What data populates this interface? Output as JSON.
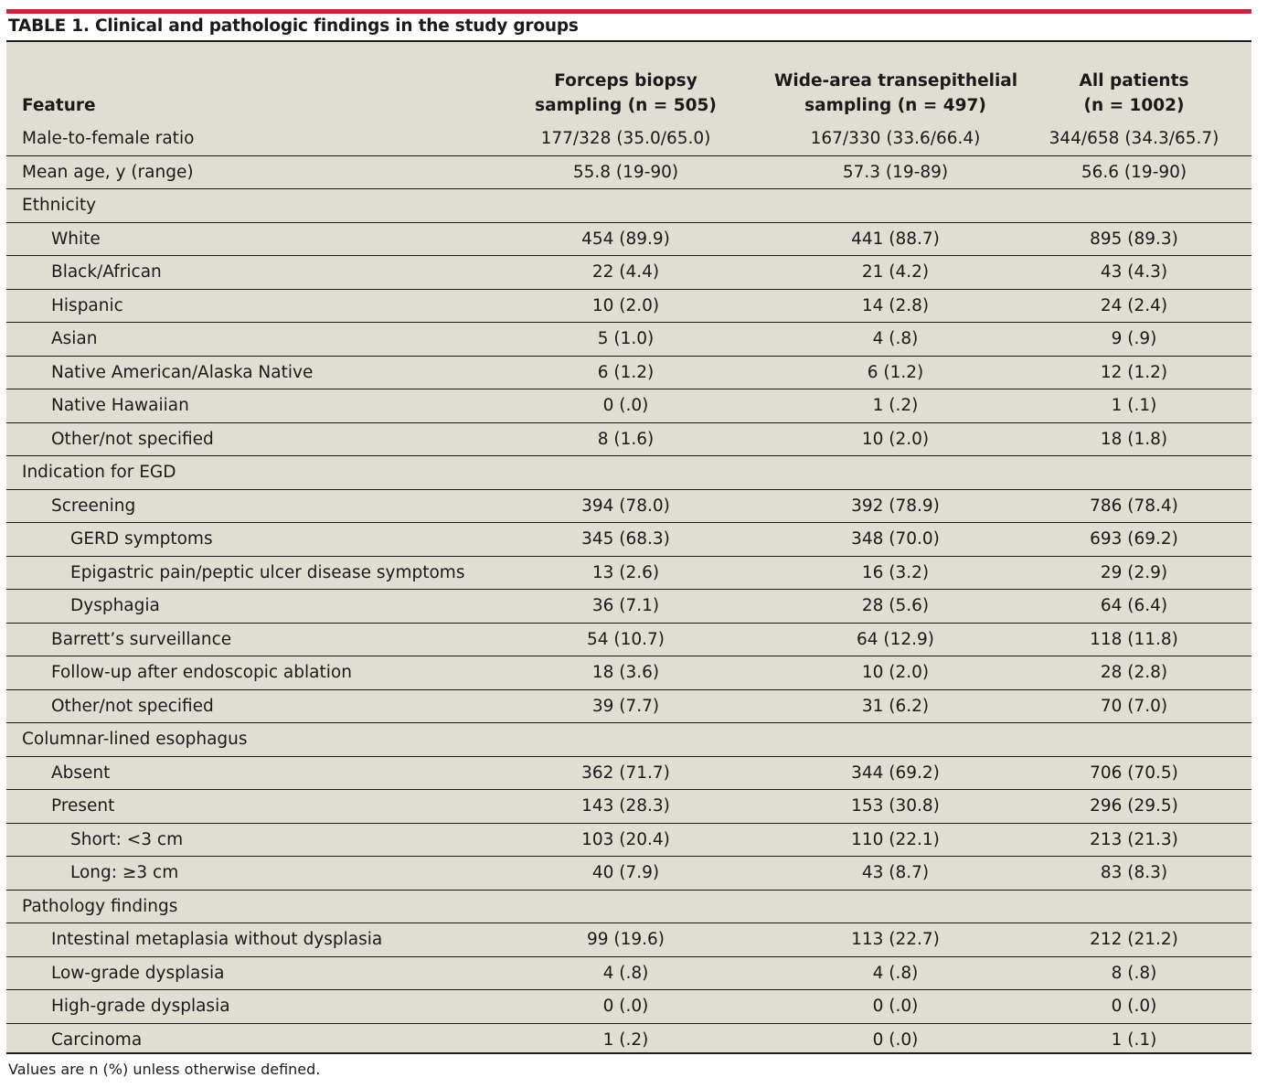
{
  "caption": "TABLE 1. Clinical and pathologic findings in the study groups",
  "header": {
    "feature": "Feature",
    "col1_line1": "Forceps biopsy",
    "col1_line2": "sampling (n = 505)",
    "col2_line1": "Wide-area transepithelial",
    "col2_line2": "sampling (n = 497)",
    "col3_line1": "All patients",
    "col3_line2": "(n = 1002)"
  },
  "rows": [
    {
      "label": "Male-to-female ratio",
      "c1": "177/328 (35.0/65.0)",
      "c2": "167/330 (33.6/66.4)",
      "c3": "344/658 (34.3/65.7)"
    },
    {
      "label": "Mean age, y (range)",
      "c1": "55.8 (19-90)",
      "c2": "57.3 (19-89)",
      "c3": "56.6 (19-90)"
    },
    {
      "label": "Ethnicity",
      "c1": "",
      "c2": "",
      "c3": ""
    },
    {
      "label": "White",
      "c1": "454 (89.9)",
      "c2": "441 (88.7)",
      "c3": "895 (89.3)"
    },
    {
      "label": "Black/African",
      "c1": "22 (4.4)",
      "c2": "21 (4.2)",
      "c3": "43 (4.3)"
    },
    {
      "label": "Hispanic",
      "c1": "10 (2.0)",
      "c2": "14 (2.8)",
      "c3": "24 (2.4)"
    },
    {
      "label": "Asian",
      "c1": "5 (1.0)",
      "c2": "4 (.8)",
      "c3": "9 (.9)"
    },
    {
      "label": "Native American/Alaska Native",
      "c1": "6 (1.2)",
      "c2": "6 (1.2)",
      "c3": "12 (1.2)"
    },
    {
      "label": "Native Hawaiian",
      "c1": "0 (.0)",
      "c2": "1 (.2)",
      "c3": "1 (.1)"
    },
    {
      "label": "Other/not specified",
      "c1": "8 (1.6)",
      "c2": "10 (2.0)",
      "c3": "18 (1.8)"
    },
    {
      "label": "Indication for EGD",
      "c1": "",
      "c2": "",
      "c3": ""
    },
    {
      "label": "Screening",
      "c1": "394 (78.0)",
      "c2": "392 (78.9)",
      "c3": "786 (78.4)"
    },
    {
      "label": "GERD symptoms",
      "c1": "345 (68.3)",
      "c2": "348 (70.0)",
      "c3": "693 (69.2)"
    },
    {
      "label": "Epigastric pain/peptic ulcer disease symptoms",
      "c1": "13 (2.6)",
      "c2": "16 (3.2)",
      "c3": "29 (2.9)"
    },
    {
      "label": "Dysphagia",
      "c1": "36 (7.1)",
      "c2": "28 (5.6)",
      "c3": "64 (6.4)"
    },
    {
      "label": "Barrett’s surveillance",
      "c1": "54 (10.7)",
      "c2": "64 (12.9)",
      "c3": "118 (11.8)"
    },
    {
      "label": "Follow-up after endoscopic ablation",
      "c1": "18 (3.6)",
      "c2": "10 (2.0)",
      "c3": "28 (2.8)"
    },
    {
      "label": "Other/not specified",
      "c1": "39 (7.7)",
      "c2": "31 (6.2)",
      "c3": "70 (7.0)"
    },
    {
      "label": "Columnar-lined esophagus",
      "c1": "",
      "c2": "",
      "c3": ""
    },
    {
      "label": "Absent",
      "c1": "362 (71.7)",
      "c2": "344 (69.2)",
      "c3": "706 (70.5)"
    },
    {
      "label": "Present",
      "c1": "143 (28.3)",
      "c2": "153 (30.8)",
      "c3": "296 (29.5)"
    },
    {
      "label": "Short: <3 cm",
      "c1": "103 (20.4)",
      "c2": "110 (22.1)",
      "c3": "213 (21.3)"
    },
    {
      "label": "Long: ≥3 cm",
      "c1": "40 (7.9)",
      "c2": "43 (8.7)",
      "c3": "83 (8.3)"
    },
    {
      "label": "Pathology findings",
      "c1": "",
      "c2": "",
      "c3": ""
    },
    {
      "label": "Intestinal metaplasia without dysplasia",
      "c1": "99 (19.6)",
      "c2": "113 (22.7)",
      "c3": "212 (21.2)"
    },
    {
      "label": "Low-grade dysplasia",
      "c1": "4 (.8)",
      "c2": "4 (.8)",
      "c3": "8 (.8)"
    },
    {
      "label": "High-grade dysplasia",
      "c1": "0 (.0)",
      "c2": "0 (.0)",
      "c3": "0 (.0)"
    },
    {
      "label": "Carcinoma",
      "c1": "1 (.2)",
      "c2": "0 (.0)",
      "c3": "1 (.1)"
    }
  ],
  "footnote": "Values are n (%) unless otherwise defined."
}
